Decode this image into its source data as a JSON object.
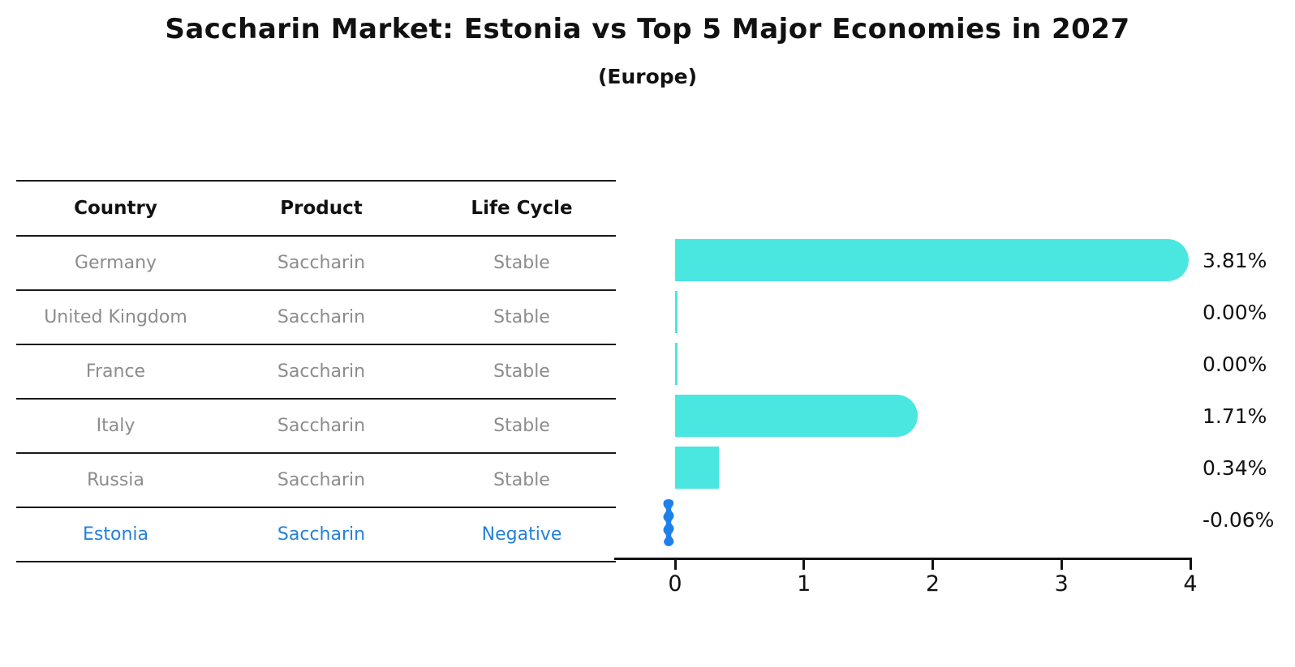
{
  "title": "Saccharin Market: Estonia vs Top 5 Major Economies in 2027",
  "subtitle": "(Europe)",
  "table": {
    "headers": [
      "Country",
      "Product",
      "Life Cycle"
    ],
    "rows": [
      {
        "country": "Germany",
        "product": "Saccharin",
        "life_cycle": "Stable",
        "highlight": false
      },
      {
        "country": "United Kingdom",
        "product": "Saccharin",
        "life_cycle": "Stable",
        "highlight": false
      },
      {
        "country": "France",
        "product": "Saccharin",
        "life_cycle": "Stable",
        "highlight": false
      },
      {
        "country": "Italy",
        "product": "Saccharin",
        "life_cycle": "Stable",
        "highlight": false
      },
      {
        "country": "Russia",
        "product": "Saccharin",
        "life_cycle": "Stable",
        "highlight": false
      },
      {
        "country": "Estonia",
        "product": "Saccharin",
        "life_cycle": "Negative",
        "highlight": true
      }
    ]
  },
  "chart_data": {
    "type": "bar",
    "orientation": "horizontal",
    "title": "Saccharin Market: Estonia vs Top 5 Major Economies in 2027",
    "subtitle": "(Europe)",
    "categories": [
      "Germany",
      "United Kingdom",
      "France",
      "Italy",
      "Russia",
      "Estonia"
    ],
    "values": [
      3.81,
      0.0,
      0.0,
      1.71,
      0.34,
      -0.06
    ],
    "value_labels": [
      "3.81%",
      "0.00%",
      "0.00%",
      "1.71%",
      "0.34%",
      "-0.06%"
    ],
    "unit": "%",
    "xlim": [
      0,
      4
    ],
    "x_ticks": [
      "0",
      "1",
      "2",
      "3",
      "4"
    ],
    "grid": "off",
    "legend": "none",
    "bar_color": "#4ae6e0",
    "highlight_bar_color": "#2080ea",
    "highlight_text_color": "#2481d9"
  }
}
